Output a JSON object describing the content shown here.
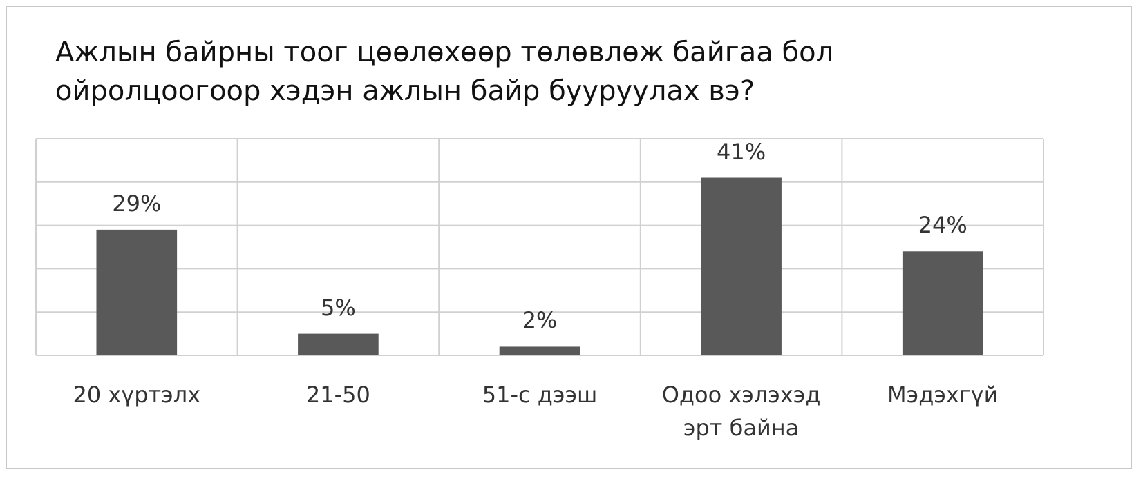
{
  "chart_data": {
    "type": "bar",
    "title": "Ажлын байрны тоог цөөлөхөөр төлөвлөж байгаа бол ойролцоогоор хэдэн ажлын байр бууруулах вэ?",
    "categories": [
      "20 хүртэлх",
      "21-50",
      "51-с дээш",
      "Одоо хэлэхэд эрт байна",
      "Мэдэхгүй"
    ],
    "values": [
      29,
      5,
      2,
      41,
      24
    ],
    "value_labels": [
      "29%",
      "5%",
      "2%",
      "41%",
      "24%"
    ],
    "color": "#595959",
    "ylim": [
      0,
      50
    ],
    "yticks": [
      0,
      10,
      20,
      30,
      40,
      50
    ],
    "grid": true
  }
}
